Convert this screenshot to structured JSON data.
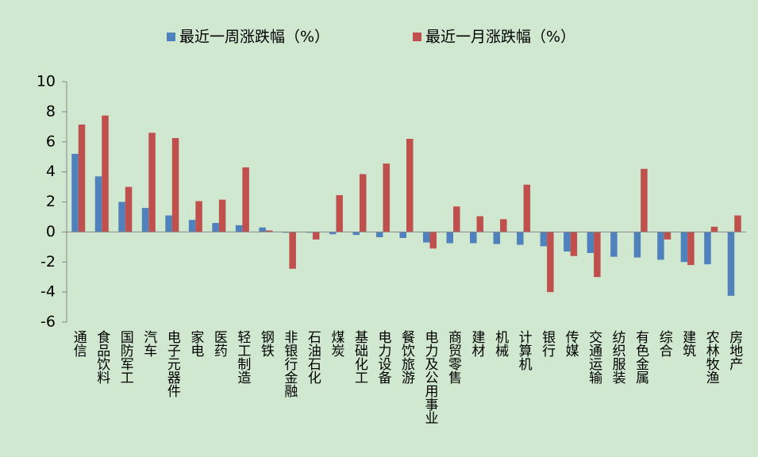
{
  "chart_data": {
    "type": "bar",
    "categories": [
      "通信",
      "食品饮料",
      "国防军工",
      "汽车",
      "电子元器件",
      "家电",
      "医药",
      "轻工制造",
      "钢铁",
      "非银行金融",
      "石油石化",
      "煤炭",
      "基础化工",
      "电力设备",
      "餐饮旅游",
      "电力及公用事业",
      "商贸零售",
      "建材",
      "机械",
      "计算机",
      "银行",
      "传媒",
      "交通运输",
      "纺织服装",
      "有色金属",
      "综合",
      "建筑",
      "农林牧渔",
      "房地产"
    ],
    "series": [
      {
        "name": "最近一周涨跌幅（%）",
        "color": "#4f81bd",
        "values": [
          5.2,
          3.7,
          2.0,
          1.6,
          1.1,
          0.8,
          0.6,
          0.45,
          0.3,
          -0.05,
          -0.05,
          -0.15,
          -0.2,
          -0.35,
          -0.4,
          -0.7,
          -0.75,
          -0.75,
          -0.8,
          -0.85,
          -0.95,
          -1.3,
          -1.4,
          -1.65,
          -1.7,
          -1.85,
          -2.0,
          -2.15,
          -4.25
        ]
      },
      {
        "name": "最近一月涨跌幅（%）",
        "color": "#c0504d",
        "values": [
          7.15,
          7.75,
          3.0,
          6.6,
          6.25,
          2.05,
          2.15,
          4.3,
          0.1,
          -2.45,
          -0.5,
          2.45,
          3.85,
          4.55,
          6.2,
          -1.1,
          1.7,
          1.05,
          0.85,
          3.15,
          -4.0,
          -1.6,
          -3.0,
          0,
          4.2,
          -0.5,
          -2.2,
          0.35,
          1.1
        ]
      }
    ],
    "ylim": [
      -6,
      10
    ],
    "yticks": [
      -6,
      -4,
      -2,
      0,
      2,
      4,
      6,
      8,
      10
    ],
    "legend": "top"
  }
}
